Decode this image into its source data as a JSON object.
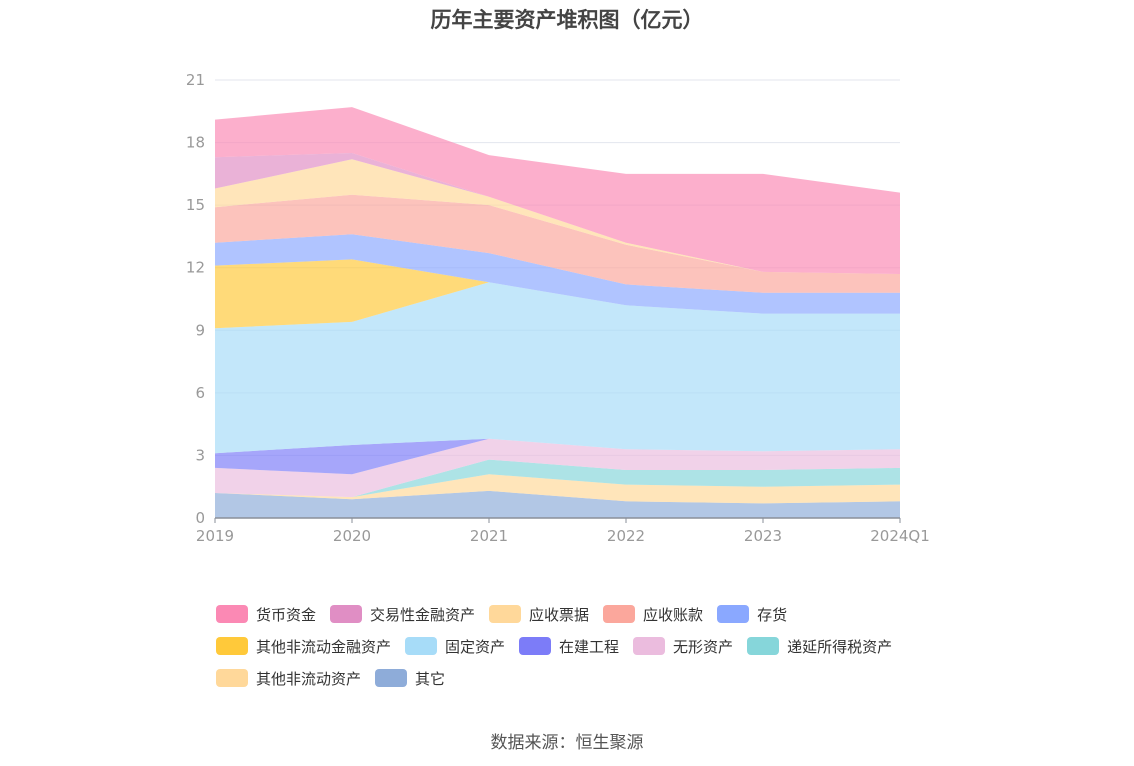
{
  "chart_data": {
    "type": "area",
    "title": "历年主要资产堆积图（亿元）",
    "categories": [
      "2019",
      "2020",
      "2021",
      "2022",
      "2023",
      "2024Q1"
    ],
    "ylim": [
      0,
      21
    ],
    "yticks": [
      "0",
      "3",
      "6",
      "9",
      "12",
      "15",
      "18",
      "21"
    ],
    "grid": true,
    "series": [
      {
        "name": "其它",
        "color": "#8eacd9",
        "values": [
          1.2,
          0.9,
          1.3,
          0.8,
          0.7,
          0.8
        ]
      },
      {
        "name": "其他非流动资产",
        "color": "#ffd89a",
        "values": [
          0.0,
          0.1,
          0.8,
          0.8,
          0.8,
          0.8
        ]
      },
      {
        "name": "递延所得税资产",
        "color": "#86d6da",
        "values": [
          0.0,
          0.0,
          0.7,
          0.7,
          0.8,
          0.8
        ]
      },
      {
        "name": "无形资产",
        "color": "#ebbcde",
        "values": [
          1.2,
          1.1,
          1.0,
          1.0,
          0.9,
          0.9
        ]
      },
      {
        "name": "在建工程",
        "color": "#7c7cf8",
        "values": [
          0.7,
          1.4,
          0.0,
          0.0,
          0.0,
          0.0
        ]
      },
      {
        "name": "固定资产",
        "color": "#a7dcf8",
        "values": [
          6.0,
          5.9,
          7.5,
          6.9,
          6.6,
          6.5
        ]
      },
      {
        "name": "其他非流动金融资产",
        "color": "#ffc93a",
        "values": [
          3.0,
          3.0,
          0.0,
          0.0,
          0.0,
          0.0
        ]
      },
      {
        "name": "存货",
        "color": "#8aa8ff",
        "values": [
          1.1,
          1.2,
          1.4,
          1.0,
          1.0,
          1.0
        ]
      },
      {
        "name": "应收账款",
        "color": "#fba79c",
        "values": [
          1.7,
          1.9,
          2.3,
          1.9,
          1.0,
          0.9
        ]
      },
      {
        "name": "应收票据",
        "color": "#ffd89a",
        "values": [
          0.9,
          1.7,
          0.4,
          0.1,
          0.0,
          0.0
        ]
      },
      {
        "name": "交易性金融资产",
        "color": "#e08ec4",
        "values": [
          1.5,
          0.3,
          0.0,
          0.0,
          0.0,
          0.0
        ]
      },
      {
        "name": "货币资金",
        "color": "#fb89b4",
        "values": [
          1.8,
          2.2,
          2.0,
          3.3,
          4.7,
          3.9
        ]
      }
    ],
    "legend": [
      [
        "货币资金",
        "交易性金融资产",
        "应收票据",
        "应收账款",
        "存货"
      ],
      [
        "其他非流动金融资产",
        "固定资产",
        "在建工程",
        "无形资产",
        "递延所得税资产"
      ],
      [
        "其他非流动资产",
        "其它"
      ]
    ],
    "legend_colors": {
      "货币资金": "#fb89b4",
      "交易性金融资产": "#e08ec4",
      "应收票据": "#ffd89a",
      "应收账款": "#fba79c",
      "存货": "#8aa8ff",
      "其他非流动金融资产": "#ffc93a",
      "固定资产": "#a7dcf8",
      "在建工程": "#7c7cf8",
      "无形资产": "#ebbcde",
      "递延所得税资产": "#86d6da",
      "其他非流动资产": "#ffd89a",
      "其它": "#8eacd9"
    },
    "legend_position": "bottom"
  },
  "source": "数据来源：恒生聚源"
}
